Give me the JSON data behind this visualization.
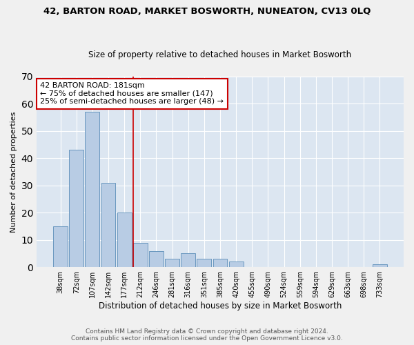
{
  "title": "42, BARTON ROAD, MARKET BOSWORTH, NUNEATON, CV13 0LQ",
  "subtitle": "Size of property relative to detached houses in Market Bosworth",
  "xlabel": "Distribution of detached houses by size in Market Bosworth",
  "ylabel": "Number of detached properties",
  "footer_line1": "Contains HM Land Registry data © Crown copyright and database right 2024.",
  "footer_line2": "Contains public sector information licensed under the Open Government Licence v3.0.",
  "bar_labels": [
    "38sqm",
    "72sqm",
    "107sqm",
    "142sqm",
    "177sqm",
    "212sqm",
    "246sqm",
    "281sqm",
    "316sqm",
    "351sqm",
    "385sqm",
    "420sqm",
    "455sqm",
    "490sqm",
    "524sqm",
    "559sqm",
    "594sqm",
    "629sqm",
    "663sqm",
    "698sqm",
    "733sqm"
  ],
  "bar_values": [
    15,
    43,
    57,
    31,
    20,
    9,
    6,
    3,
    5,
    3,
    3,
    2,
    0,
    0,
    0,
    0,
    0,
    0,
    0,
    0,
    1
  ],
  "bar_color": "#b8cce4",
  "bar_edge_color": "#5b8db8",
  "background_color": "#dce6f1",
  "grid_color": "#ffffff",
  "property_line_x": 4.57,
  "annotation_text": "42 BARTON ROAD: 181sqm\n← 75% of detached houses are smaller (147)\n25% of semi-detached houses are larger (48) →",
  "annotation_box_color": "#ffffff",
  "annotation_box_edge": "#cc0000",
  "vline_color": "#cc0000",
  "ylim": [
    0,
    70
  ],
  "yticks": [
    0,
    10,
    20,
    30,
    40,
    50,
    60,
    70
  ],
  "fig_width": 6.0,
  "fig_height": 5.0,
  "fig_bg": "#f0f0f0"
}
